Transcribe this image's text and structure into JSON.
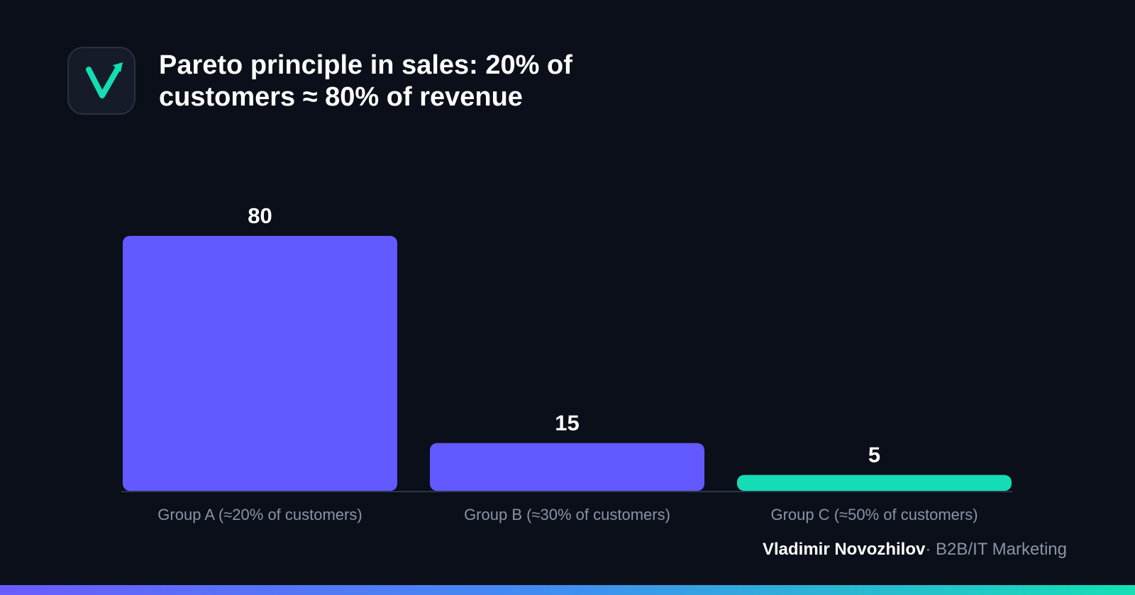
{
  "header": {
    "title": "Pareto principle in sales: 20% of customers ≈ 80% of revenue",
    "logo_icon": "checkmark-arrow-icon"
  },
  "chart_data": {
    "type": "bar",
    "title": "Pareto principle in sales: 20% of customers ≈ 80% of revenue",
    "categories": [
      "Group A (≈20% of customers)",
      "Group B (≈30% of customers)",
      "Group C (≈50% of customers)"
    ],
    "values": [
      80,
      15,
      5
    ],
    "value_labels": [
      "80",
      "15",
      "5"
    ],
    "bar_colors": [
      "#6259ff",
      "#6259ff",
      "#14dcb4"
    ],
    "ylim": [
      0,
      80
    ],
    "xlabel": "",
    "ylabel": "",
    "grid": false,
    "legend": "none"
  },
  "footer": {
    "author": "Vladimir Novozhilov",
    "separator": "·",
    "role": "B2B/IT Marketing"
  },
  "colors": {
    "background": "#0b0f1a",
    "accent_purple": "#6259ff",
    "accent_teal": "#14dcb4",
    "axis": "#2c3447",
    "muted_text": "#8c93a3"
  }
}
